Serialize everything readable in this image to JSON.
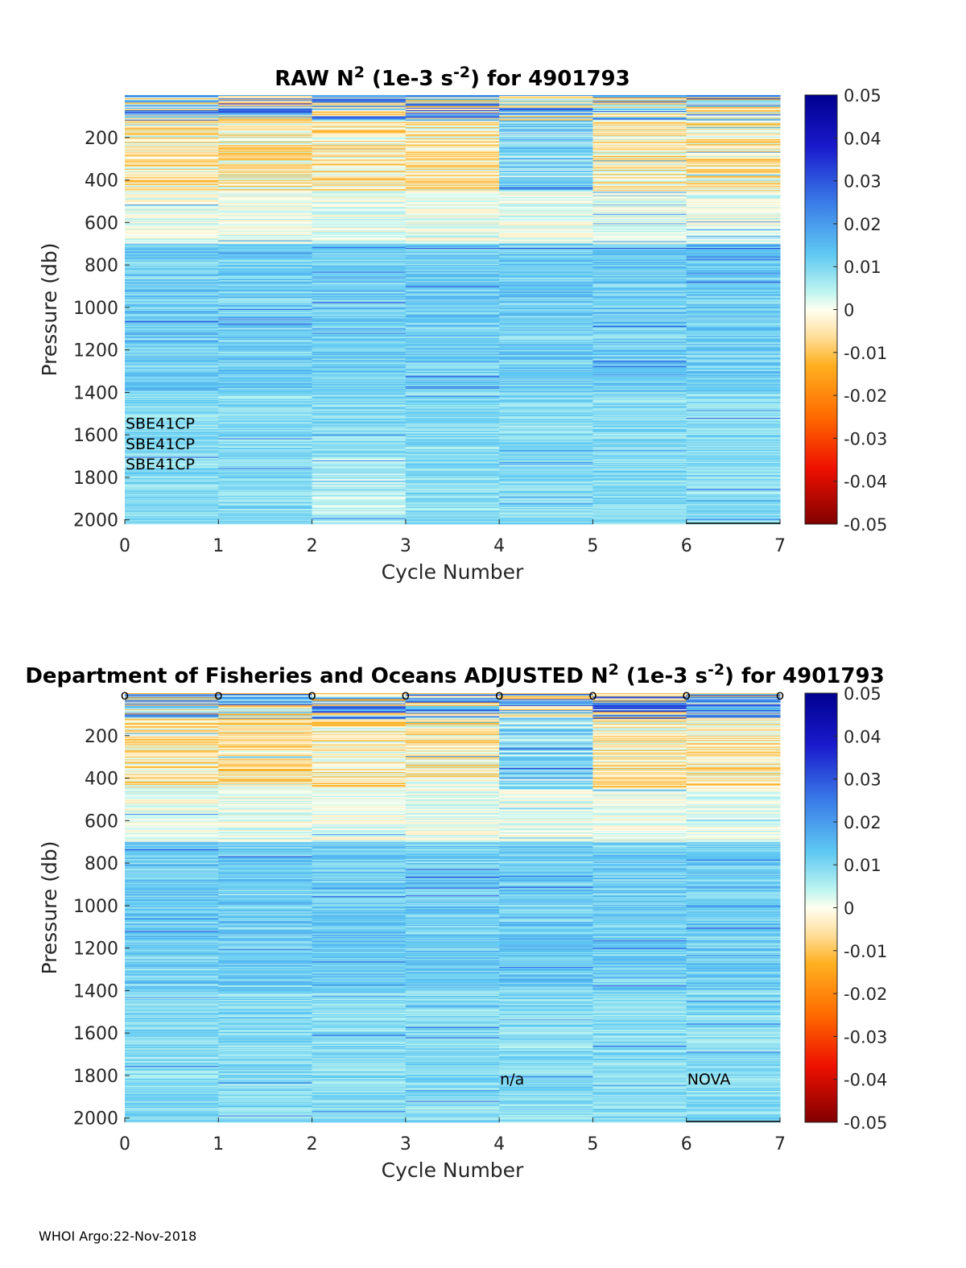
{
  "footer": "WHOI Argo:22-Nov-2018",
  "colorbar": {
    "ticks": [
      "0.05",
      "0.04",
      "0.03",
      "0.02",
      "0.01",
      "0",
      "-0.01",
      "-0.02",
      "-0.03",
      "-0.04",
      "-0.05"
    ],
    "range": [
      -0.05,
      0.05
    ]
  },
  "chart_data": [
    {
      "type": "heatmap",
      "title_prefix": "RAW N",
      "title_suffix": " (1e-3 s",
      "title_end": ") for 4901793",
      "sup1": "2",
      "sup2": "-2",
      "xlabel": "Cycle Number",
      "ylabel": "Pressure (db)",
      "xlim": [
        0,
        7
      ],
      "ylim": [
        2020,
        0
      ],
      "xticks": [
        "0",
        "1",
        "2",
        "3",
        "4",
        "5",
        "6",
        "7"
      ],
      "yticks": [
        "200",
        "400",
        "600",
        "800",
        "1000",
        "1200",
        "1400",
        "1600",
        "1800",
        "2000"
      ],
      "color_range": [
        -0.05,
        0.05
      ],
      "cycles": [
        1,
        2,
        3,
        4,
        5,
        6,
        7
      ],
      "annotations": [
        {
          "text": "SBE41CP",
          "x": 0,
          "pressure": 1530
        },
        {
          "text": "SBE41CP",
          "x": 0,
          "pressure": 1625
        },
        {
          "text": "SBE41CP",
          "x": 0,
          "pressure": 1720
        }
      ],
      "markers": []
    },
    {
      "type": "heatmap",
      "title_prefix": "Department of Fisheries and Oceans  ADJUSTED N",
      "title_suffix": " (1e-3 s",
      "title_end": ") for 4901793",
      "sup1": "2",
      "sup2": "-2",
      "xlabel": "Cycle Number",
      "ylabel": "Pressure (db)",
      "xlim": [
        0,
        7
      ],
      "ylim": [
        2020,
        0
      ],
      "xticks": [
        "0",
        "1",
        "2",
        "3",
        "4",
        "5",
        "6",
        "7"
      ],
      "yticks": [
        "200",
        "400",
        "600",
        "800",
        "1000",
        "1200",
        "1400",
        "1600",
        "1800",
        "2000"
      ],
      "color_range": [
        -0.05,
        0.05
      ],
      "cycles": [
        1,
        2,
        3,
        4,
        5,
        6,
        7
      ],
      "annotations": [
        {
          "text": "n/a",
          "x": 4,
          "pressure": 1800
        },
        {
          "text": "NOVA",
          "x": 6,
          "pressure": 1800
        }
      ],
      "markers": [
        {
          "text": "o",
          "x": 0
        },
        {
          "text": "o",
          "x": 1
        },
        {
          "text": "o",
          "x": 2
        },
        {
          "text": "o",
          "x": 3
        },
        {
          "text": "o",
          "x": 4
        },
        {
          "text": "o",
          "x": 5
        },
        {
          "text": "o",
          "x": 6
        },
        {
          "text": "o",
          "x": 7
        }
      ]
    }
  ]
}
